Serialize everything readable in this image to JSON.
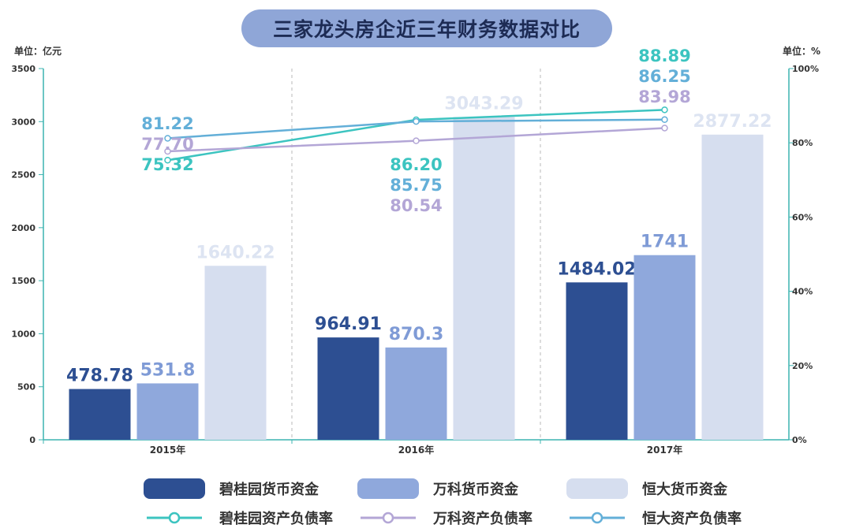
{
  "title": "三家龙头房企近三年财务数据对比",
  "left_unit": "单位：亿元",
  "right_unit": "单位：%",
  "chart_data": {
    "type": "bar",
    "categories": [
      "2015年",
      "2016年",
      "2017年"
    ],
    "ylim": [
      0,
      3500
    ],
    "y_ticks": [
      "0",
      "500",
      "1000",
      "1500",
      "2000",
      "2500",
      "3000",
      "3500"
    ],
    "y2lim": [
      0,
      100
    ],
    "y2_ticks": [
      "0%",
      "20%",
      "40%",
      "60%",
      "80%",
      "100%"
    ],
    "grid": false,
    "legend_placement": "bottom",
    "bar_series": [
      {
        "name": "碧桂园货币资金",
        "values": [
          478.78,
          964.91,
          1484.02
        ],
        "labels": [
          "478.78",
          "964.91",
          "1484.02"
        ],
        "color": "#2d4f92",
        "label_color": "#2d4f92"
      },
      {
        "name": "万科货币资金",
        "values": [
          531.8,
          870.3,
          1741
        ],
        "labels": [
          "531.8",
          "870.3",
          "1741"
        ],
        "color": "#8fa8dc",
        "label_color": "#7f9bd6"
      },
      {
        "name": "恒大货币资金",
        "values": [
          1640.22,
          3043.29,
          2877.22
        ],
        "labels": [
          "1640.22",
          "3043.29",
          "2877.22"
        ],
        "color": "#d6deef",
        "label_color": "#dde4f2"
      }
    ],
    "line_series": [
      {
        "name": "碧桂园资产负债率",
        "values": [
          75.32,
          86.2,
          88.89
        ],
        "labels": [
          "75.32",
          "86.20",
          "88.89"
        ],
        "color": "#3cc4c0"
      },
      {
        "name": "万科资产负债率",
        "values": [
          77.7,
          80.54,
          83.98
        ],
        "labels": [
          "77.70",
          "80.54",
          "83.98"
        ],
        "color": "#b3a6d6"
      },
      {
        "name": "恒大资产负债率",
        "values": [
          81.22,
          85.75,
          86.25
        ],
        "labels": [
          "81.22",
          "85.75",
          "86.25"
        ],
        "color": "#63afd8"
      }
    ]
  }
}
